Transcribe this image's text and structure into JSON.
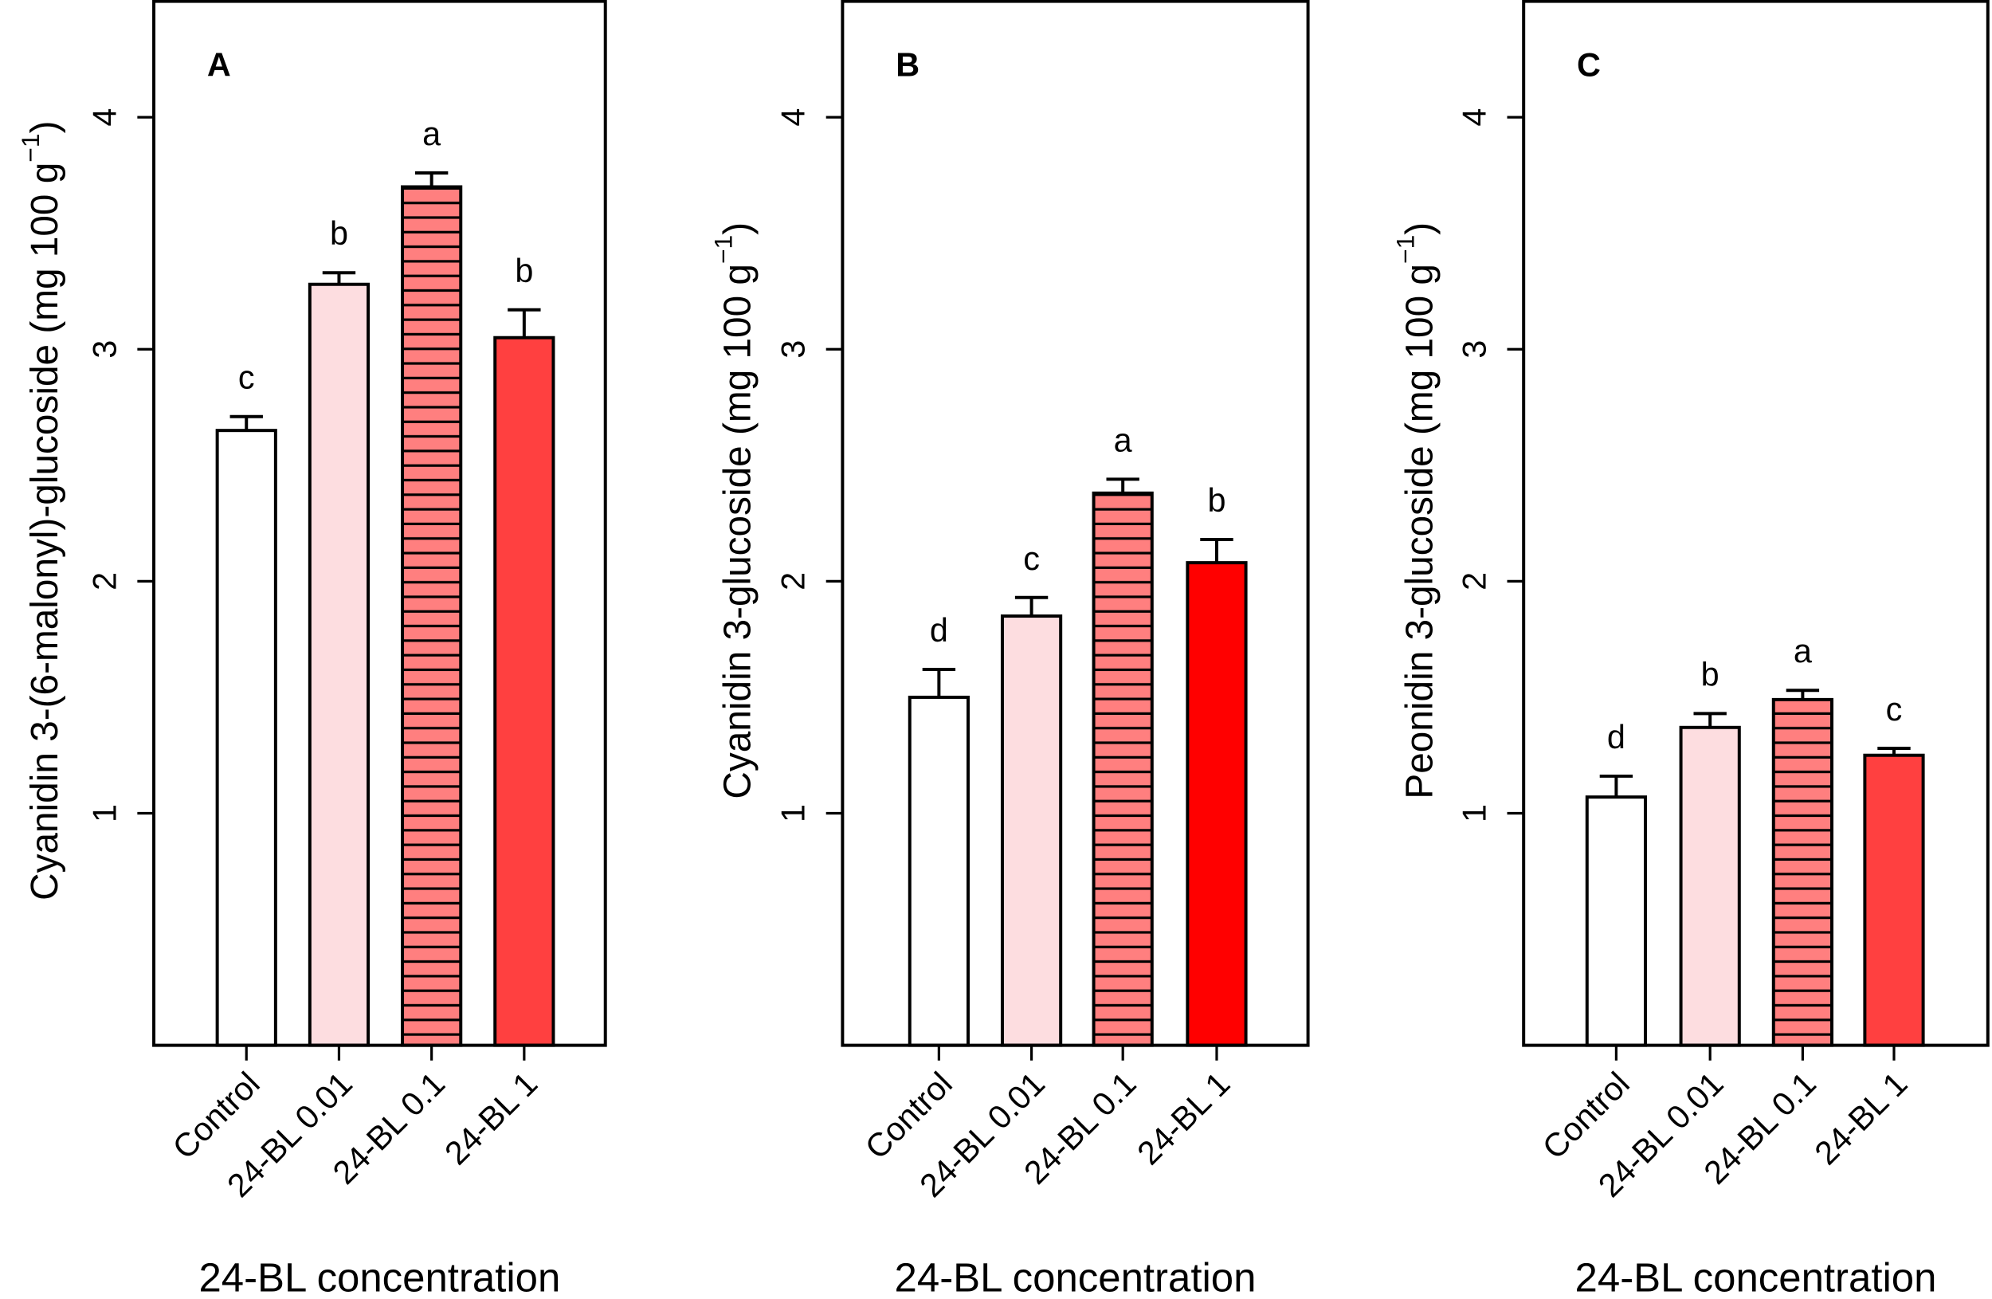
{
  "chart_data": [
    {
      "type": "bar",
      "panel_label": "A",
      "ylabel": "Cyanidin 3-(6-malonyl)-glucoside (mg 100 g",
      "ylabel_sup": "−1",
      "ylabel_close": ")",
      "xlabel": "24-BL concentration",
      "categories": [
        "Control",
        "24-BL 0.01",
        "24-BL 0.1",
        "24-BL 1"
      ],
      "values": [
        2.65,
        3.28,
        3.7,
        3.05
      ],
      "errors": [
        0.06,
        0.05,
        0.06,
        0.12
      ],
      "letters": [
        "c",
        "b",
        "a",
        "b"
      ],
      "colors": [
        "#FFFFFF",
        "#FDDDE0",
        "#FF7F7F",
        "#FF4040"
      ],
      "hatched": [
        false,
        false,
        true,
        false
      ],
      "ylim": [
        0,
        4.5
      ],
      "yticks": [
        1,
        2,
        3,
        4
      ]
    },
    {
      "type": "bar",
      "panel_label": "B",
      "ylabel": "Cyanidin 3-glucoside (mg 100 g",
      "ylabel_sup": "−1",
      "ylabel_close": ")",
      "xlabel": "24-BL concentration",
      "categories": [
        "Control",
        "24-BL 0.01",
        "24-BL 0.1",
        "24-BL 1"
      ],
      "values": [
        1.5,
        1.85,
        2.38,
        2.08
      ],
      "errors": [
        0.12,
        0.08,
        0.06,
        0.1
      ],
      "letters": [
        "d",
        "c",
        "a",
        "b"
      ],
      "colors": [
        "#FFFFFF",
        "#FDDDE0",
        "#FF7F7F",
        "#FF0000"
      ],
      "hatched": [
        false,
        false,
        true,
        false
      ],
      "ylim": [
        0,
        4.5
      ],
      "yticks": [
        1,
        2,
        3,
        4
      ]
    },
    {
      "type": "bar",
      "panel_label": "C",
      "ylabel": "Peonidin 3-glucoside (mg 100 g",
      "ylabel_sup": "−1",
      "ylabel_close": ")",
      "xlabel": "24-BL concentration",
      "categories": [
        "Control",
        "24-BL 0.01",
        "24-BL 0.1",
        "24-BL 1"
      ],
      "values": [
        1.07,
        1.37,
        1.49,
        1.25
      ],
      "errors": [
        0.09,
        0.06,
        0.04,
        0.03
      ],
      "letters": [
        "d",
        "b",
        "a",
        "c"
      ],
      "colors": [
        "#FFFFFF",
        "#FDDDE0",
        "#FF7F7F",
        "#FF4040"
      ],
      "hatched": [
        false,
        false,
        true,
        false
      ],
      "ylim": [
        0,
        4.5
      ],
      "yticks": [
        1,
        2,
        3,
        4
      ]
    }
  ]
}
